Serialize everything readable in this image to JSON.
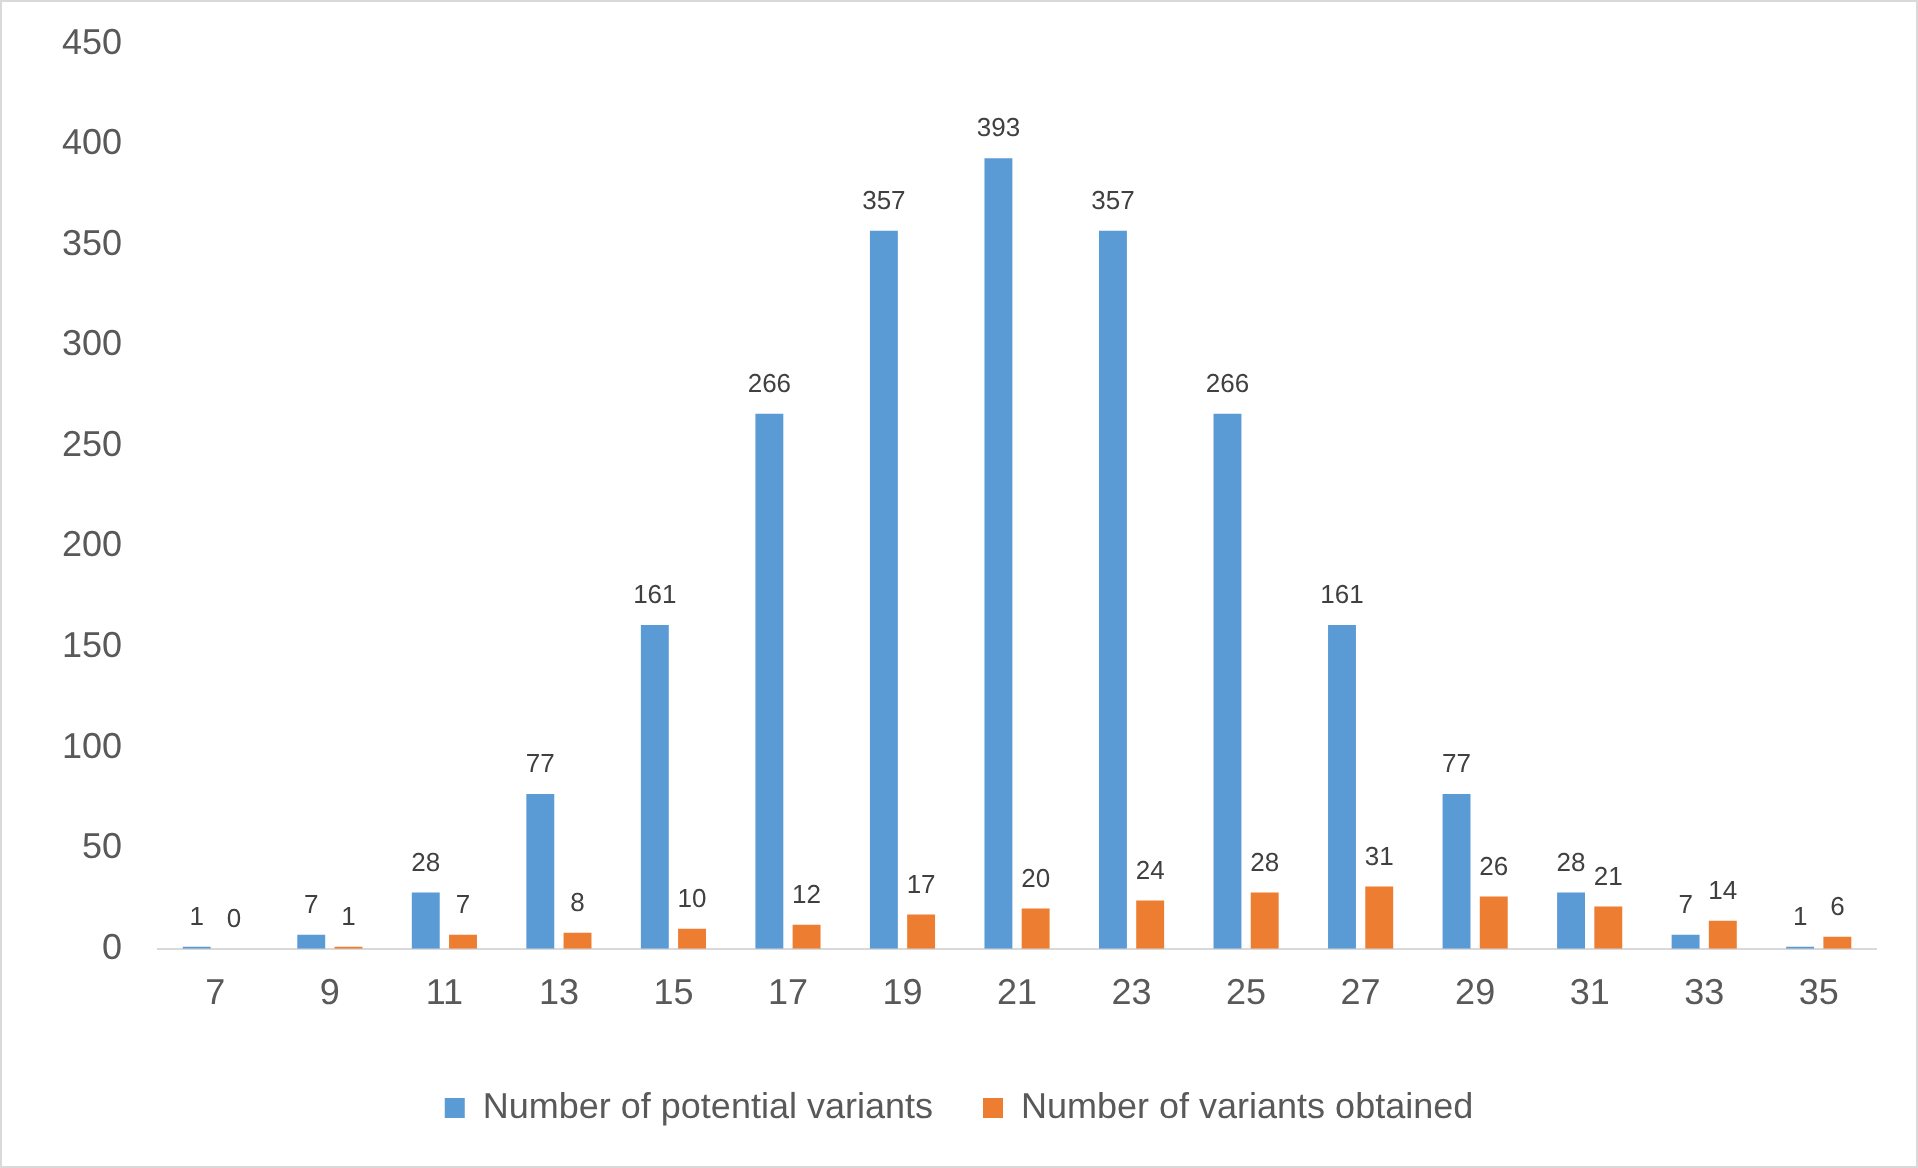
{
  "chart_data": {
    "type": "bar",
    "categories": [
      "7",
      "9",
      "11",
      "13",
      "15",
      "17",
      "19",
      "21",
      "23",
      "25",
      "27",
      "29",
      "31",
      "33",
      "35"
    ],
    "series": [
      {
        "name": "Number of potential variants",
        "color": "#5b9bd5",
        "values": [
          1,
          7,
          28,
          77,
          161,
          266,
          357,
          393,
          357,
          266,
          161,
          77,
          28,
          7,
          1
        ]
      },
      {
        "name": "Number of variants obtained",
        "color": "#ed7d31",
        "values": [
          0,
          1,
          7,
          8,
          10,
          12,
          17,
          20,
          24,
          28,
          31,
          26,
          21,
          14,
          6
        ]
      }
    ],
    "ylim": [
      0,
      450
    ],
    "yticks": [
      0,
      50,
      100,
      150,
      200,
      250,
      300,
      350,
      400,
      450
    ],
    "grid": false,
    "legend": "bottom",
    "data_labels": true
  }
}
